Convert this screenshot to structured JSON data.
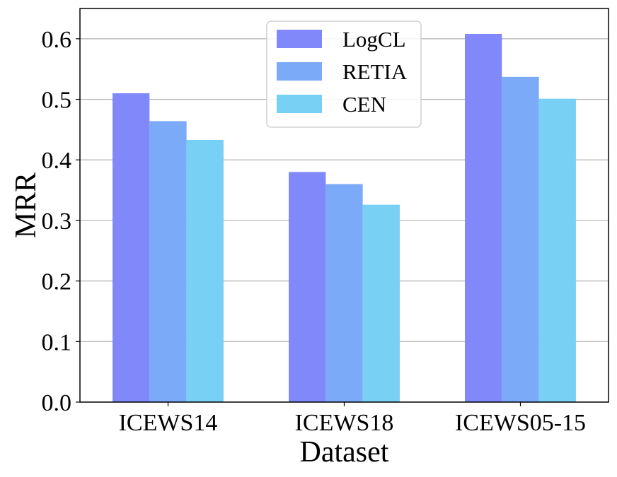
{
  "chart_data": {
    "type": "bar",
    "title": "",
    "xlabel": "Dataset",
    "ylabel": "MRR",
    "categories": [
      "ICEWS14",
      "ICEWS18",
      "ICEWS05-15"
    ],
    "series": [
      {
        "name": "LogCL",
        "color": "#8189fa",
        "values": [
          0.51,
          0.38,
          0.608
        ]
      },
      {
        "name": "RETIA",
        "color": "#7aaaf8",
        "values": [
          0.464,
          0.36,
          0.537
        ]
      },
      {
        "name": "CEN",
        "color": "#78d0f5",
        "values": [
          0.433,
          0.326,
          0.501
        ]
      }
    ],
    "ylim": [
      0,
      0.65
    ],
    "yticks": [
      0.0,
      0.1,
      0.2,
      0.3,
      0.4,
      0.5,
      0.6
    ],
    "ytick_labels": [
      "0.0",
      "0.1",
      "0.2",
      "0.3",
      "0.4",
      "0.5",
      "0.6"
    ],
    "grid": "y",
    "legend_position": "top-center"
  }
}
